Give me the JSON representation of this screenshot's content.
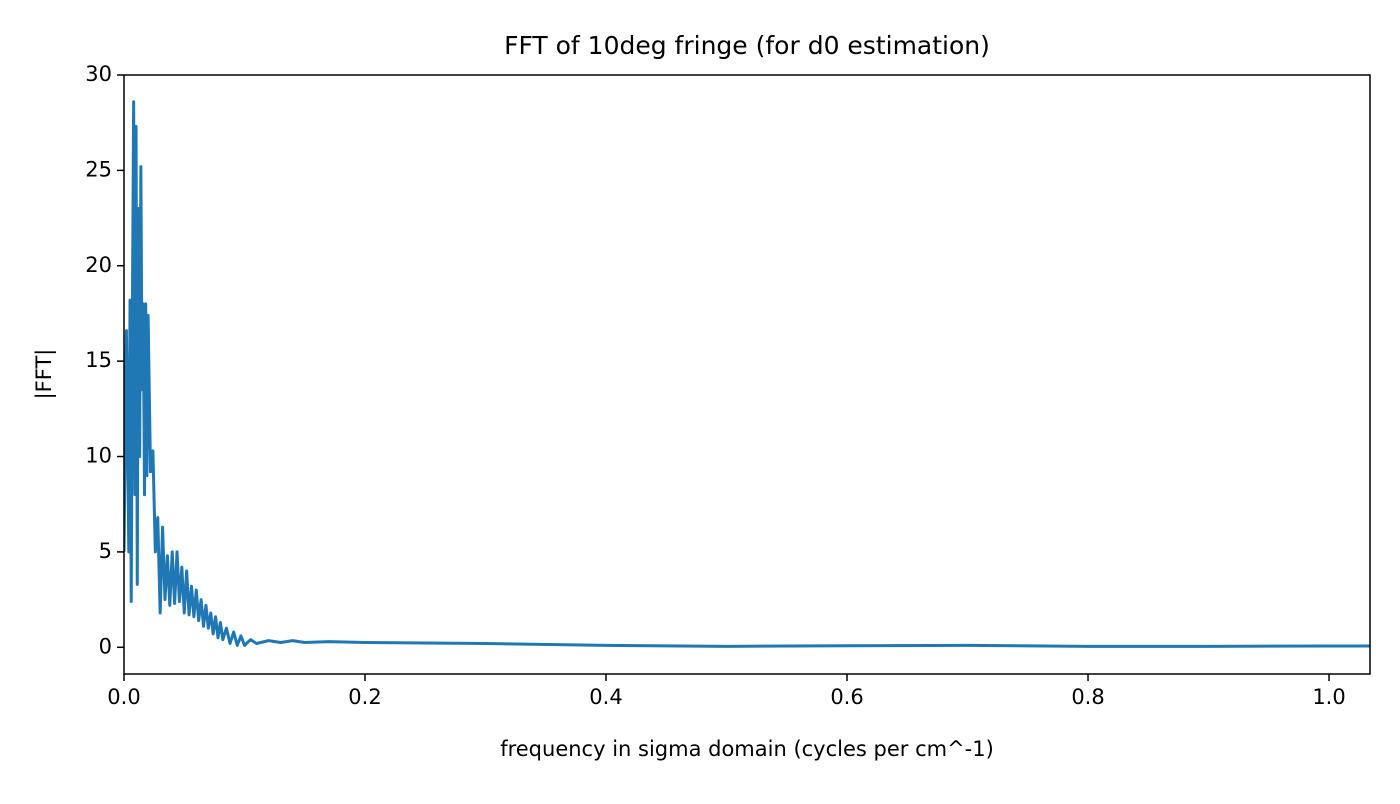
{
  "chart_data": {
    "type": "line",
    "title": "FFT of 10deg fringe (for d0 estimation)",
    "x_label": "frequency in sigma domain (cycles per cm^-1)",
    "y_label": "|FFT|",
    "x": [
      0.0,
      0.002,
      0.004,
      0.005,
      0.006,
      0.007,
      0.008,
      0.009,
      0.01,
      0.011,
      0.012,
      0.013,
      0.014,
      0.015,
      0.016,
      0.017,
      0.018,
      0.019,
      0.02,
      0.022,
      0.024,
      0.026,
      0.028,
      0.03,
      0.032,
      0.034,
      0.036,
      0.038,
      0.04,
      0.042,
      0.044,
      0.046,
      0.048,
      0.05,
      0.052,
      0.054,
      0.056,
      0.058,
      0.06,
      0.062,
      0.064,
      0.066,
      0.068,
      0.07,
      0.072,
      0.074,
      0.076,
      0.078,
      0.08,
      0.082,
      0.085,
      0.088,
      0.091,
      0.094,
      0.097,
      0.1,
      0.105,
      0.11,
      0.12,
      0.13,
      0.14,
      0.15,
      0.17,
      0.2,
      0.3,
      0.4,
      0.5,
      0.6,
      0.7,
      0.8,
      0.9,
      1.0,
      1.034
    ],
    "series": [
      {
        "name": "|FFT|",
        "color": "#1f77b4",
        "values": [
          5,
          16.6,
          5,
          18.2,
          2.4,
          18,
          28.6,
          8,
          27.3,
          3.3,
          23,
          10,
          25.2,
          13.5,
          18,
          8,
          18,
          9,
          17.4,
          9.2,
          10.3,
          5,
          6.8,
          1.8,
          6.3,
          2.5,
          4.8,
          2.2,
          5,
          2.3,
          5,
          2.4,
          4.2,
          1.8,
          4,
          1.7,
          3.2,
          1.6,
          3,
          1.4,
          2.5,
          1.1,
          2.2,
          1.0,
          1.8,
          0.7,
          1.6,
          0.5,
          1.3,
          0.4,
          1.0,
          0.2,
          0.8,
          0.1,
          0.6,
          0.1,
          0.4,
          0.2,
          0.35,
          0.25,
          0.35,
          0.25,
          0.3,
          0.25,
          0.2,
          0.1,
          0.05,
          0.08,
          0.1,
          0.05,
          0.05,
          0.07,
          0.07
        ]
      }
    ],
    "xlim": [
      0,
      1.034
    ],
    "ylim": [
      -1.4,
      30
    ],
    "xticks": [
      {
        "value": 0,
        "label": "0.0"
      },
      0.2,
      0.4,
      0.6,
      0.8,
      {
        "value": 1,
        "label": "1.0"
      }
    ],
    "yticks": [
      0,
      5,
      10,
      15,
      20,
      25,
      30
    ],
    "grid": false
  }
}
